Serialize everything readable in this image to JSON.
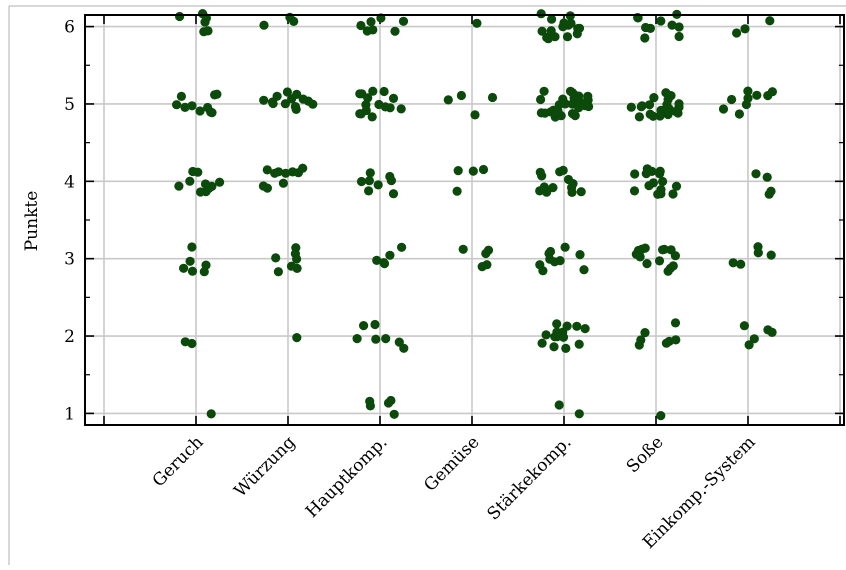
{
  "chart_data": {
    "type": "scatter",
    "title": "",
    "xlabel": "",
    "ylabel": "Punkte",
    "categories": [
      "Geruch",
      "Würzung",
      "Hauptkomp.",
      "Gemüse",
      "Stärkekomp.",
      "Soße",
      "Einkomp.-System"
    ],
    "yticks": [
      1,
      2,
      3,
      4,
      5,
      6
    ],
    "ylim": [
      0.85,
      6.15
    ],
    "grid": true,
    "point_color": "#0b4a0b",
    "series": [
      {
        "points": [
          {
            "x": "Geruch",
            "y": [
              6,
              6,
              6,
              6,
              6,
              6,
              5,
              5,
              5,
              5,
              5,
              5,
              5,
              5,
              5,
              5,
              4,
              4,
              4,
              4,
              4,
              4,
              4,
              4,
              4,
              4,
              3,
              3,
              3,
              3,
              3,
              3,
              2,
              2,
              1
            ]
          },
          {
            "x": "Würzung",
            "y": [
              6,
              6,
              6,
              5,
              5,
              5,
              5,
              5,
              5,
              5,
              5,
              5,
              5,
              5,
              5,
              5,
              4,
              4,
              4,
              4,
              4,
              4,
              4,
              4,
              4,
              4,
              3,
              3,
              3,
              3,
              3,
              3,
              3,
              2
            ]
          },
          {
            "x": "Hauptkomp.",
            "y": [
              6,
              6,
              6,
              6,
              6,
              6,
              6,
              5,
              5,
              5,
              5,
              5,
              5,
              5,
              5,
              5,
              5,
              5,
              5,
              5,
              5,
              5,
              4,
              4,
              4,
              4,
              4,
              4,
              4,
              4,
              3,
              3,
              3,
              3,
              3,
              2,
              2,
              2,
              2,
              2,
              2,
              2,
              1,
              1,
              1,
              1,
              1
            ]
          },
          {
            "x": "Gemüse",
            "y": [
              6,
              5,
              5,
              5,
              5,
              4,
              4,
              4,
              4,
              3,
              3,
              3,
              3,
              3
            ]
          },
          {
            "x": "Stärkekomp.",
            "y": [
              6,
              6,
              6,
              6,
              6,
              6,
              6,
              6,
              6,
              6,
              6,
              6,
              6,
              6,
              6,
              6,
              5,
              5,
              5,
              5,
              5,
              5,
              5,
              5,
              5,
              5,
              5,
              5,
              5,
              5,
              5,
              5,
              5,
              5,
              5,
              5,
              5,
              5,
              5,
              5,
              5,
              5,
              5,
              5,
              5,
              5,
              4,
              4,
              4,
              4,
              4,
              4,
              4,
              4,
              4,
              4,
              4,
              4,
              4,
              4,
              3,
              3,
              3,
              3,
              3,
              3,
              3,
              3,
              3,
              3,
              2,
              2,
              2,
              2,
              2,
              2,
              2,
              2,
              2,
              2,
              2,
              2,
              2,
              2,
              1,
              1
            ]
          },
          {
            "x": "Soße",
            "y": [
              6,
              6,
              6,
              6,
              6,
              6,
              6,
              6,
              6,
              6,
              5,
              5,
              5,
              5,
              5,
              5,
              5,
              5,
              5,
              5,
              5,
              5,
              5,
              5,
              5,
              5,
              5,
              5,
              5,
              5,
              5,
              4,
              4,
              4,
              4,
              4,
              4,
              4,
              4,
              4,
              4,
              4,
              4,
              4,
              4,
              4,
              4,
              3,
              3,
              3,
              3,
              3,
              3,
              3,
              3,
              3,
              3,
              3,
              3,
              3,
              3,
              2,
              2,
              2,
              2,
              2,
              2,
              2,
              1
            ]
          },
          {
            "x": "Einkomp.-System",
            "y": [
              6,
              6,
              6,
              5,
              5,
              5,
              5,
              5,
              5,
              5,
              5,
              5,
              4,
              4,
              4,
              4,
              3,
              3,
              3,
              3,
              3,
              2,
              2,
              2,
              2,
              2
            ]
          }
        ]
      }
    ]
  }
}
